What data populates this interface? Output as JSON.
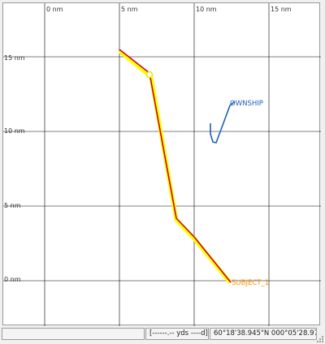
{
  "plot": {
    "x_ticks": [
      "0 nm",
      "5 nm",
      "10 nm",
      "15 nm"
    ],
    "y_ticks": [
      "15 nm",
      "10 nm",
      "5 nm",
      "0 nm"
    ]
  },
  "tracks": [
    {
      "name": "OWNSHIP",
      "color": "#1f5fb5"
    },
    {
      "name": "SUBJECT_1",
      "color": "#ff8c00",
      "highlight_color": "#ffff00",
      "line_color": "#cc0033"
    }
  ],
  "status_bar": {
    "left": "",
    "range": "[------.-- yds ----d]",
    "position": "60°18'38.945\"N 000°05'28.975\"E"
  }
}
